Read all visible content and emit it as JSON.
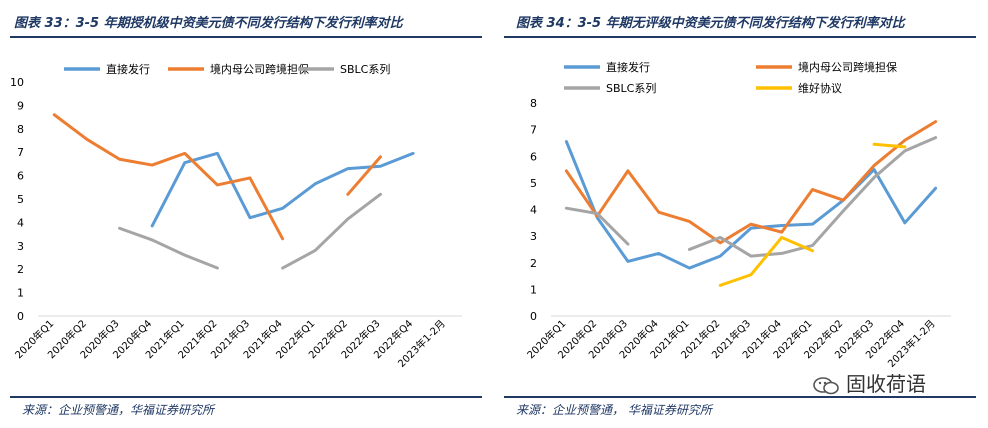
{
  "left": {
    "title": "图表 33：3-5 年期授机级中资美元债不同发行结构下发行利率对比",
    "source": "来源：企业预警通，华福证券研究所"
  },
  "right": {
    "title": "图表 34：3-5 年期无评级中资美元债不同发行结构下发行利率对比",
    "source": "来源：企业预警通， 华福证券研究所"
  },
  "watermark": {
    "text": "固收荷语",
    "icon": "wechat-logo-icon"
  },
  "chart_data": [
    {
      "type": "line",
      "categories": [
        "2020年Q1",
        "2020年Q2",
        "2020年Q3",
        "2020年Q4",
        "2021年Q1",
        "2021年Q2",
        "2021年Q3",
        "2021年Q4",
        "2022年Q1",
        "2022年Q2",
        "2022年Q3",
        "2022年Q4",
        "2023年1-2月"
      ],
      "ylim": [
        0,
        10
      ],
      "yticks": [
        0,
        1,
        2,
        3,
        4,
        5,
        6,
        7,
        8,
        9,
        10
      ],
      "grid": false,
      "legend_position": "top",
      "series": [
        {
          "name": "直接发行",
          "color": "#5b9bd5",
          "values": [
            null,
            null,
            null,
            3.85,
            6.55,
            6.95,
            4.2,
            4.6,
            5.65,
            6.3,
            6.4,
            6.95,
            null
          ]
        },
        {
          "name": "境内母公司跨境担保",
          "color": "#ed7d31",
          "values": [
            8.6,
            7.55,
            6.7,
            6.45,
            6.95,
            5.6,
            5.9,
            3.3,
            null,
            5.2,
            6.8,
            null,
            null
          ]
        },
        {
          "name": "SBLC系列",
          "color": "#a5a5a5",
          "values": [
            null,
            null,
            3.75,
            3.25,
            2.6,
            2.05,
            null,
            2.05,
            2.8,
            4.15,
            5.2,
            null,
            null
          ]
        }
      ]
    },
    {
      "type": "line",
      "categories": [
        "2020年Q1",
        "2020年Q2",
        "2020年Q3",
        "2020年Q4",
        "2021年Q1",
        "2021年Q2",
        "2021年Q3",
        "2021年Q4",
        "2022年Q1",
        "2022年Q2",
        "2022年Q3",
        "2022年Q4",
        "2023年1-2月"
      ],
      "ylim": [
        0,
        8
      ],
      "yticks": [
        0,
        1,
        2,
        3,
        4,
        5,
        6,
        7,
        8
      ],
      "grid": false,
      "legend_position": "top",
      "series": [
        {
          "name": "直接发行",
          "color": "#5b9bd5",
          "values": [
            6.55,
            3.7,
            2.05,
            2.35,
            1.8,
            2.25,
            3.3,
            3.4,
            3.45,
            4.35,
            5.5,
            3.5,
            4.8
          ]
        },
        {
          "name": "境内母公司跨境担保",
          "color": "#ed7d31",
          "values": [
            5.45,
            3.75,
            5.45,
            3.9,
            3.55,
            2.75,
            3.45,
            3.15,
            4.75,
            4.35,
            5.65,
            6.6,
            7.3
          ]
        },
        {
          "name": "SBLC系列",
          "color": "#a5a5a5",
          "values": [
            4.05,
            3.85,
            2.7,
            null,
            2.5,
            2.95,
            2.25,
            2.35,
            2.65,
            3.95,
            5.2,
            6.2,
            6.7
          ]
        },
        {
          "name": "维好协议",
          "color": "#ffc000",
          "values": [
            null,
            null,
            null,
            null,
            null,
            1.15,
            1.55,
            2.95,
            2.45,
            null,
            6.45,
            6.35,
            null
          ]
        }
      ]
    }
  ]
}
